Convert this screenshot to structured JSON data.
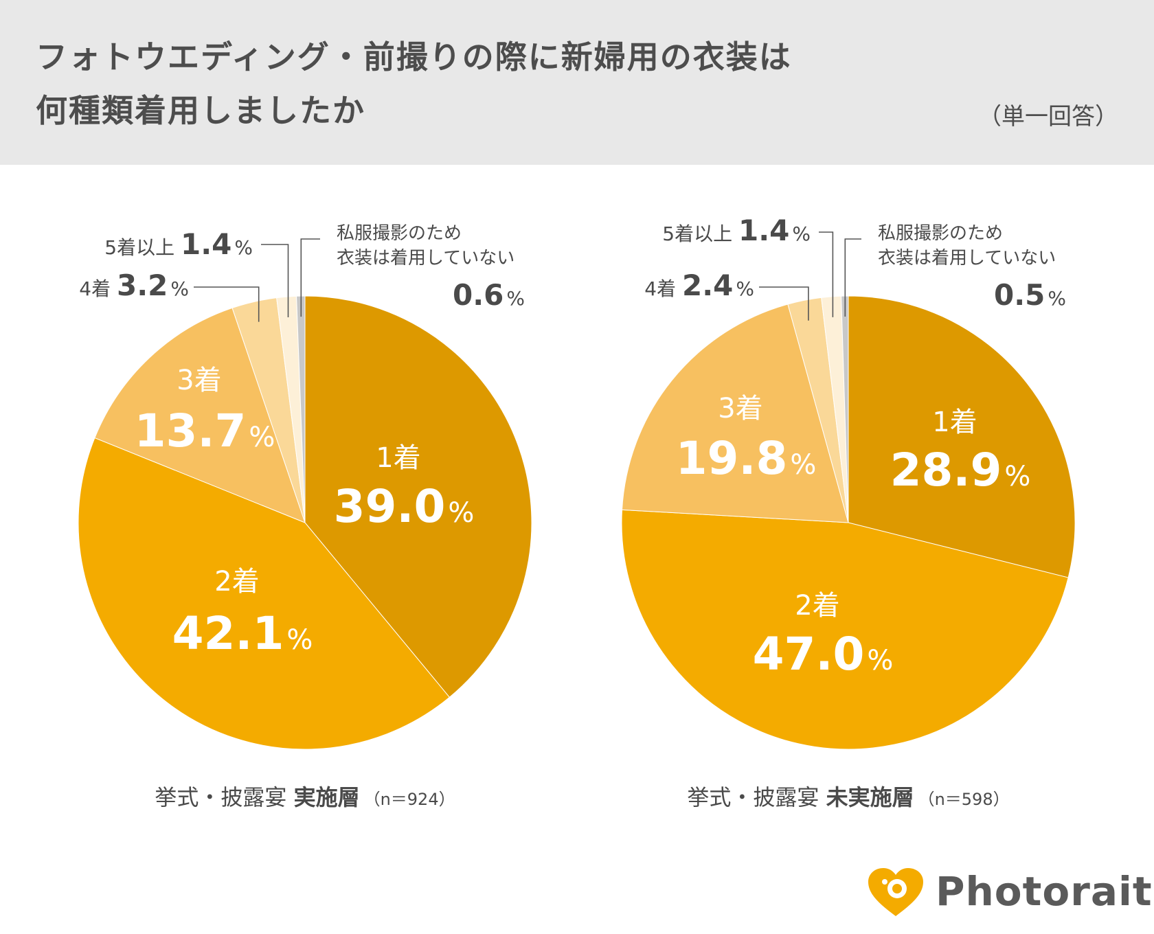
{
  "header": {
    "title_line1": "フォトウエディング・前撮りの際に新婦用の衣装は",
    "title_line2": "何種類着用しましたか",
    "note": "（単一回答）"
  },
  "chart_data": [
    {
      "type": "pie",
      "caption_prefix": "挙式・披露宴",
      "caption_bold": "実施層",
      "caption_n": "（n＝924）",
      "slices": [
        {
          "label": "1着",
          "value": 39.0,
          "display": "39.0",
          "color": "#dd9900"
        },
        {
          "label": "2着",
          "value": 42.1,
          "display": "42.1",
          "color": "#f4ab00"
        },
        {
          "label": "3着",
          "value": 13.7,
          "display": "13.7",
          "color": "#f7c060"
        },
        {
          "label": "4着",
          "value": 3.2,
          "display": "3.2",
          "color": "#fad898"
        },
        {
          "label": "5着以上",
          "value": 1.4,
          "display": "1.4",
          "color": "#fdf0d8"
        },
        {
          "label": "私服撮影のため\n衣装は着用していない",
          "value": 0.6,
          "display": "0.6",
          "color": "#c8c8c8"
        }
      ]
    },
    {
      "type": "pie",
      "caption_prefix": "挙式・披露宴",
      "caption_bold": "未実施層",
      "caption_n": "（n＝598）",
      "slices": [
        {
          "label": "1着",
          "value": 28.9,
          "display": "28.9",
          "color": "#dd9900"
        },
        {
          "label": "2着",
          "value": 47.0,
          "display": "47.0",
          "color": "#f4ab00"
        },
        {
          "label": "3着",
          "value": 19.8,
          "display": "19.8",
          "color": "#f7c060"
        },
        {
          "label": "4着",
          "value": 2.4,
          "display": "2.4",
          "color": "#fad898"
        },
        {
          "label": "5着以上",
          "value": 1.4,
          "display": "1.4",
          "color": "#fdf0d8"
        },
        {
          "label": "私服撮影のため\n衣装は着用していない",
          "value": 0.5,
          "display": "0.5",
          "color": "#c8c8c8"
        }
      ]
    }
  ],
  "percent_sign": "%",
  "logo": {
    "text": "Photorait",
    "icon": "heart-camera-icon",
    "color": "#f4ab00"
  }
}
